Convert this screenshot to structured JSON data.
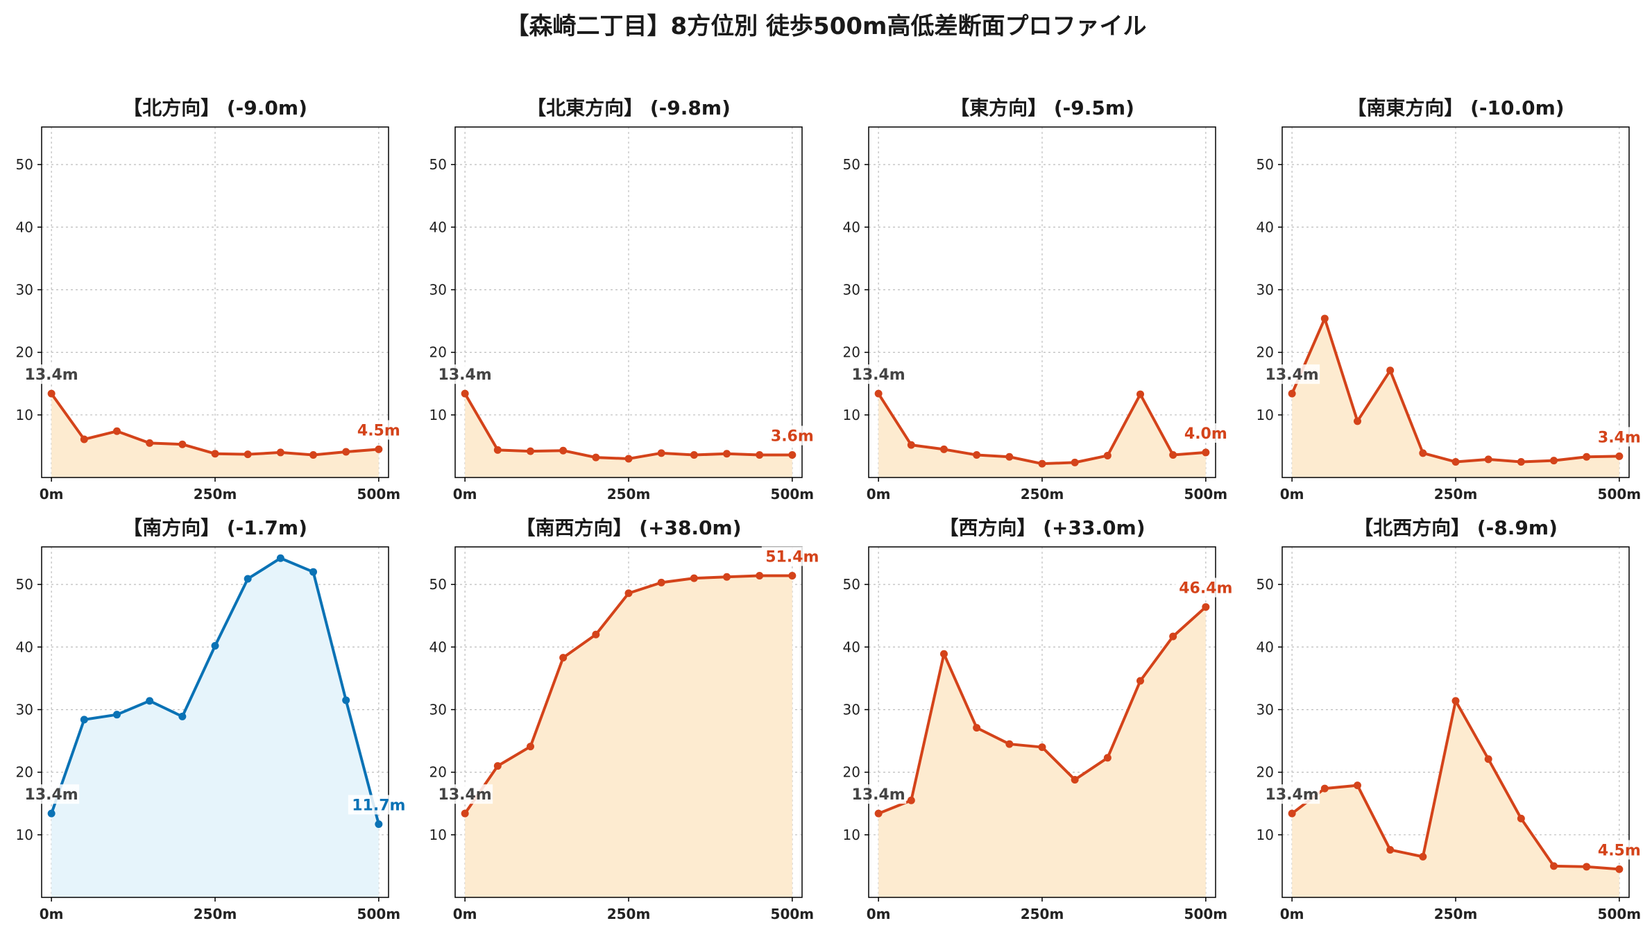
{
  "title": "【森崎二丁目】8方位別 徒歩500m高低差断面プロファイル",
  "colors": {
    "down_line": "#d4431a",
    "down_fill": "#fdebd0",
    "up_line": "#0a72b5",
    "up_fill": "#e6f4fb",
    "start_label": "#444444"
  },
  "chart_data": [
    {
      "type": "area",
      "title": "【北方向】 (-9.0m)",
      "x": [
        0,
        50,
        100,
        150,
        200,
        250,
        300,
        350,
        400,
        450,
        500
      ],
      "xticks": [
        "0m",
        "250m",
        "500m"
      ],
      "y": [
        13.4,
        6.1,
        7.4,
        5.5,
        5.3,
        3.8,
        3.7,
        4.0,
        3.6,
        4.1,
        4.5
      ],
      "yticks": [
        10,
        20,
        30,
        40,
        50
      ],
      "ylim": [
        0,
        56
      ],
      "xlim": [
        -15,
        515
      ],
      "start_label": "13.4m",
      "end_label": "4.5m",
      "scheme": "down",
      "grid": true
    },
    {
      "type": "area",
      "title": "【北東方向】 (-9.8m)",
      "x": [
        0,
        50,
        100,
        150,
        200,
        250,
        300,
        350,
        400,
        450,
        500
      ],
      "xticks": [
        "0m",
        "250m",
        "500m"
      ],
      "y": [
        13.4,
        4.4,
        4.2,
        4.3,
        3.2,
        3.0,
        3.9,
        3.6,
        3.8,
        3.6,
        3.6
      ],
      "yticks": [
        10,
        20,
        30,
        40,
        50
      ],
      "ylim": [
        0,
        56
      ],
      "xlim": [
        -15,
        515
      ],
      "start_label": "13.4m",
      "end_label": "3.6m",
      "scheme": "down",
      "grid": true
    },
    {
      "type": "area",
      "title": "【東方向】 (-9.5m)",
      "x": [
        0,
        50,
        100,
        150,
        200,
        250,
        300,
        350,
        400,
        450,
        500
      ],
      "xticks": [
        "0m",
        "250m",
        "500m"
      ],
      "y": [
        13.4,
        5.2,
        4.5,
        3.6,
        3.3,
        2.2,
        2.4,
        3.5,
        13.3,
        3.6,
        4.0
      ],
      "yticks": [
        10,
        20,
        30,
        40,
        50
      ],
      "ylim": [
        0,
        56
      ],
      "xlim": [
        -15,
        515
      ],
      "start_label": "13.4m",
      "end_label": "4.0m",
      "scheme": "down",
      "grid": true
    },
    {
      "type": "area",
      "title": "【南東方向】 (-10.0m)",
      "x": [
        0,
        50,
        100,
        150,
        200,
        250,
        300,
        350,
        400,
        450,
        500
      ],
      "xticks": [
        "0m",
        "250m",
        "500m"
      ],
      "y": [
        13.4,
        25.4,
        9.0,
        17.1,
        3.9,
        2.5,
        2.9,
        2.5,
        2.7,
        3.3,
        3.4
      ],
      "yticks": [
        10,
        20,
        30,
        40,
        50
      ],
      "ylim": [
        0,
        56
      ],
      "xlim": [
        -15,
        515
      ],
      "start_label": "13.4m",
      "end_label": "3.4m",
      "scheme": "down",
      "grid": true
    },
    {
      "type": "area",
      "title": "【南方向】 (-1.7m)",
      "x": [
        0,
        50,
        100,
        150,
        200,
        250,
        300,
        350,
        400,
        450,
        500
      ],
      "xticks": [
        "0m",
        "250m",
        "500m"
      ],
      "y": [
        13.4,
        28.4,
        29.2,
        31.4,
        28.9,
        40.2,
        50.9,
        54.2,
        52.0,
        31.5,
        11.7
      ],
      "yticks": [
        10,
        20,
        30,
        40,
        50
      ],
      "ylim": [
        0,
        56
      ],
      "xlim": [
        -15,
        515
      ],
      "start_label": "13.4m",
      "end_label": "11.7m",
      "scheme": "up",
      "grid": true
    },
    {
      "type": "area",
      "title": "【南西方向】 (+38.0m)",
      "x": [
        0,
        50,
        100,
        150,
        200,
        250,
        300,
        350,
        400,
        450,
        500
      ],
      "xticks": [
        "0m",
        "250m",
        "500m"
      ],
      "y": [
        13.4,
        21.0,
        24.1,
        38.3,
        42.0,
        48.6,
        50.3,
        51.0,
        51.2,
        51.4,
        51.4
      ],
      "yticks": [
        10,
        20,
        30,
        40,
        50
      ],
      "ylim": [
        0,
        56
      ],
      "xlim": [
        -15,
        515
      ],
      "start_label": "13.4m",
      "end_label": "51.4m",
      "scheme": "down",
      "grid": true
    },
    {
      "type": "area",
      "title": "【西方向】 (+33.0m)",
      "x": [
        0,
        50,
        100,
        150,
        200,
        250,
        300,
        350,
        400,
        450,
        500
      ],
      "xticks": [
        "0m",
        "250m",
        "500m"
      ],
      "y": [
        13.4,
        15.5,
        38.9,
        27.1,
        24.5,
        24.0,
        18.8,
        22.3,
        34.6,
        41.7,
        46.4
      ],
      "yticks": [
        10,
        20,
        30,
        40,
        50
      ],
      "ylim": [
        0,
        56
      ],
      "xlim": [
        -15,
        515
      ],
      "start_label": "13.4m",
      "end_label": "46.4m",
      "scheme": "down",
      "grid": true
    },
    {
      "type": "area",
      "title": "【北西方向】 (-8.9m)",
      "x": [
        0,
        50,
        100,
        150,
        200,
        250,
        300,
        350,
        400,
        450,
        500
      ],
      "xticks": [
        "0m",
        "250m",
        "500m"
      ],
      "y": [
        13.4,
        17.4,
        17.9,
        7.6,
        6.5,
        31.4,
        22.1,
        12.6,
        5.0,
        4.9,
        4.5
      ],
      "yticks": [
        10,
        20,
        30,
        40,
        50
      ],
      "ylim": [
        0,
        56
      ],
      "xlim": [
        -15,
        515
      ],
      "start_label": "13.4m",
      "end_label": "4.5m",
      "scheme": "down",
      "grid": true
    }
  ]
}
